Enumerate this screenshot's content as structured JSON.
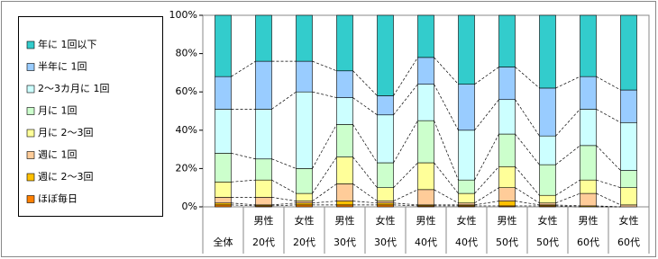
{
  "chart_data": {
    "type": "stacked-bar-100",
    "categories": [
      [
        null,
        "全体"
      ],
      [
        "男性",
        "20代"
      ],
      [
        "女性",
        "20代"
      ],
      [
        "男性",
        "30代"
      ],
      [
        "女性",
        "30代"
      ],
      [
        "男性",
        "40代"
      ],
      [
        "女性",
        "40代"
      ],
      [
        "男性",
        "50代"
      ],
      [
        "女性",
        "50代"
      ],
      [
        "男性",
        "60代"
      ],
      [
        "女性",
        "60代"
      ]
    ],
    "series": [
      {
        "name": "ほぼ毎日",
        "color": "#ff8000",
        "values": [
          1,
          0.5,
          1,
          1,
          1,
          0.5,
          0.5,
          0.5,
          0.5,
          0,
          0
        ]
      },
      {
        "name": "週に 2～3回",
        "color": "#ffc000",
        "values": [
          1,
          0.5,
          1,
          2,
          1,
          0.5,
          0.5,
          2.5,
          0.5,
          0.5,
          0
        ]
      },
      {
        "name": "週に 1回",
        "color": "#ffcc99",
        "values": [
          3,
          4,
          1,
          9,
          1,
          8,
          1,
          7,
          1,
          6.5,
          1
        ]
      },
      {
        "name": "月に 2～3回",
        "color": "#ffff99",
        "values": [
          8,
          9,
          4,
          14,
          7,
          14,
          5,
          11,
          4,
          7,
          9
        ]
      },
      {
        "name": "月に 1回",
        "color": "#ccffcc",
        "values": [
          15,
          11,
          13,
          17,
          13,
          22,
          7,
          17,
          16,
          18,
          9
        ]
      },
      {
        "name": "2～3カ月に 1回",
        "color": "#ccffff",
        "values": [
          23,
          26,
          40,
          14,
          25,
          19,
          26,
          18,
          15,
          19,
          25
        ]
      },
      {
        "name": "半年に 1回",
        "color": "#99ccff",
        "values": [
          17,
          25,
          16,
          14,
          10,
          14,
          24,
          17,
          25,
          17,
          17
        ]
      },
      {
        "name": "年に 1回以下",
        "color": "#33cccc",
        "values": [
          32,
          24,
          24,
          29,
          42,
          22,
          36,
          27,
          38,
          32,
          39
        ]
      }
    ],
    "ylim": [
      0,
      100
    ],
    "yticks": [
      {
        "value": 0,
        "label": "0%"
      },
      {
        "value": 20,
        "label": "20%"
      },
      {
        "value": 40,
        "label": "40%"
      },
      {
        "value": 60,
        "label": "60%"
      },
      {
        "value": 80,
        "label": "80%"
      },
      {
        "value": 100,
        "label": "100%"
      }
    ],
    "legend": "left"
  }
}
